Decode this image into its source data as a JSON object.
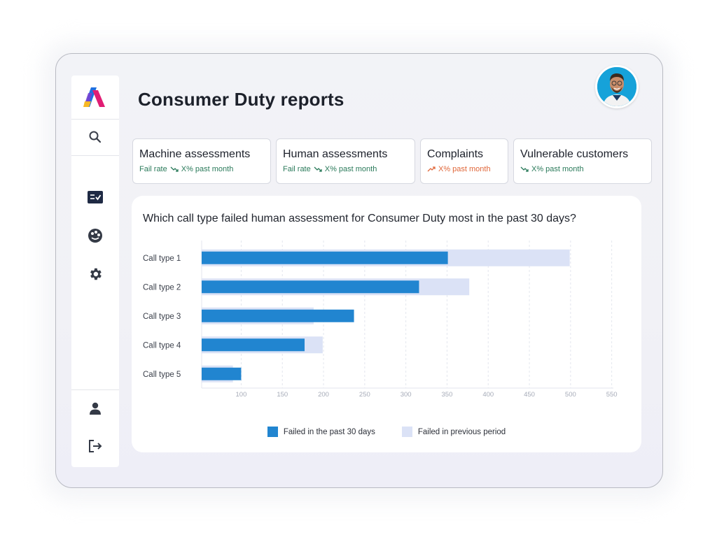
{
  "app": {
    "title": "Consumer Duty reports"
  },
  "sidebar": {
    "items": [
      {
        "name": "logo",
        "icon": "brand-logo-icon"
      },
      {
        "name": "search",
        "icon": "search-icon"
      },
      {
        "name": "scorecard",
        "icon": "scorecard-icon"
      },
      {
        "name": "insights",
        "icon": "palette-icon"
      },
      {
        "name": "settings",
        "icon": "gear-icon"
      },
      {
        "name": "profile",
        "icon": "user-icon"
      },
      {
        "name": "logout",
        "icon": "logout-icon"
      }
    ]
  },
  "kpis": [
    {
      "title": "Machine assessments",
      "label": "Fail rate",
      "value": "X% past month",
      "trend": "down",
      "color": "#2a7a5a"
    },
    {
      "title": "Human assessments",
      "label": "Fail rate",
      "value": "X% past month",
      "trend": "down",
      "color": "#2a7a5a"
    },
    {
      "title": "Complaints",
      "label": "",
      "value": "X% past month",
      "trend": "up",
      "color": "#e0673a"
    },
    {
      "title": "Vulnerable customers",
      "label": "",
      "value": "X% past month",
      "trend": "down",
      "color": "#2a7a5a"
    }
  ],
  "colors": {
    "current": "#2185d0",
    "previous": "#dbe2f6",
    "accent_down": "#2a7a5a",
    "accent_up": "#e0673a"
  },
  "chart_data": {
    "type": "bar",
    "orientation": "horizontal",
    "title": "Which call type failed human assessment for Consumer Duty most in the past 30 days?",
    "categories": [
      "Call type 1",
      "Call type 2",
      "Call type 3",
      "Call type 4",
      "Call type 5"
    ],
    "series": [
      {
        "name": "Failed in the past 30 days",
        "values": [
          351,
          316,
          237,
          177,
          100
        ],
        "color": "#2185d0"
      },
      {
        "name": "Failed in previous period",
        "values": [
          499,
          377,
          188,
          199,
          90
        ],
        "color": "#dbe2f6"
      }
    ],
    "xlim": [
      52,
      552
    ],
    "xticks": [
      100,
      150,
      200,
      250,
      300,
      350,
      400,
      450,
      500,
      550
    ],
    "grid": true,
    "legend_position": "bottom"
  }
}
